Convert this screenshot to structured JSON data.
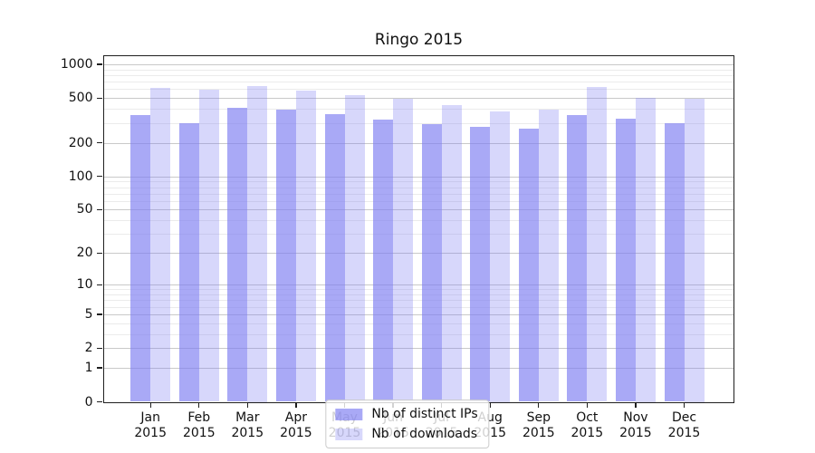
{
  "chart_data": {
    "type": "bar",
    "title": "Ringo 2015",
    "yscale": "log1p",
    "ymax_top": 1190,
    "grid": true,
    "legend_position": "lower center",
    "categories": [
      {
        "month": "Jan",
        "year": "2015"
      },
      {
        "month": "Feb",
        "year": "2015"
      },
      {
        "month": "Mar",
        "year": "2015"
      },
      {
        "month": "Apr",
        "year": "2015"
      },
      {
        "month": "May",
        "year": "2015"
      },
      {
        "month": "Jun",
        "year": "2015"
      },
      {
        "month": "Jul",
        "year": "2015"
      },
      {
        "month": "Aug",
        "year": "2015"
      },
      {
        "month": "Sep",
        "year": "2015"
      },
      {
        "month": "Oct",
        "year": "2015"
      },
      {
        "month": "Nov",
        "year": "2015"
      },
      {
        "month": "Dec",
        "year": "2015"
      }
    ],
    "series": [
      {
        "name": "Nb of distinct IPs",
        "color": "rgba(124,124,242,0.66)",
        "values": [
          353,
          300,
          412,
          395,
          360,
          320,
          295,
          279,
          266,
          350,
          330,
          297
        ]
      },
      {
        "name": "Nb of downloads",
        "color": "rgba(124,124,242,0.30)",
        "values": [
          618,
          590,
          645,
          587,
          535,
          490,
          434,
          383,
          395,
          625,
          502,
          493
        ]
      }
    ],
    "yticks": [
      {
        "v": 1000,
        "label": "1000"
      },
      {
        "v": 500,
        "label": "500"
      },
      {
        "v": 200,
        "label": "200"
      },
      {
        "v": 100,
        "label": "100"
      },
      {
        "v": 50,
        "label": "50"
      },
      {
        "v": 20,
        "label": "20"
      },
      {
        "v": 10,
        "label": "10"
      },
      {
        "v": 5,
        "label": "5"
      },
      {
        "v": 2,
        "label": "2"
      },
      {
        "v": 1,
        "label": "1"
      },
      {
        "v": 0,
        "label": "0"
      }
    ],
    "minor_gridlines": [
      3,
      4,
      6,
      7,
      8,
      9,
      30,
      40,
      60,
      70,
      80,
      90,
      300,
      400,
      600,
      700,
      800,
      900
    ],
    "colors": {
      "bar_base": "#7c7cf2",
      "gridline_major": "#c9c9c9",
      "gridline_minor": "#ebebeb"
    }
  }
}
